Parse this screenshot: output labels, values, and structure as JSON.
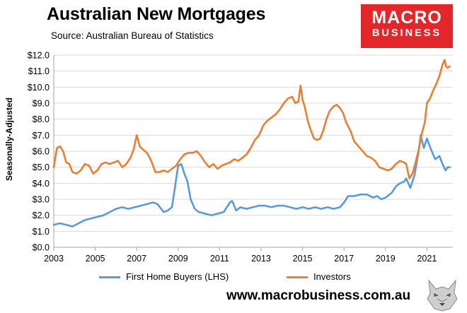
{
  "title": "Australian New Mortgages",
  "subtitle": "Source: Australian Bureau of Statistics",
  "logo": {
    "line1": "MACRO",
    "line2": "BUSINESS",
    "color": "#e3262a"
  },
  "website": "www.macrobusiness.com.au",
  "mascot_icon": "wolf-head-icon",
  "chart_data": {
    "type": "line",
    "title": "Australian New Mortgages",
    "ylabel": "Seasonally-Adjusted",
    "xlabel": "",
    "xlim": [
      2003.0,
      2022.25
    ],
    "ylim": [
      0,
      12
    ],
    "yticks": [
      "$0.0",
      "$1.0",
      "$2.0",
      "$3.0",
      "$4.0",
      "$5.0",
      "$6.0",
      "$7.0",
      "$8.0",
      "$9.0",
      "$10.0",
      "$11.0",
      "$12.0"
    ],
    "xticks": [
      "2003",
      "2005",
      "2007",
      "2009",
      "2011",
      "2013",
      "2015",
      "2017",
      "2019",
      "2021"
    ],
    "grid": true,
    "legend_position": "bottom",
    "series": [
      {
        "name": "First Home Buyers (LHS)",
        "color": "#5b9bd5",
        "x": [
          2003.0,
          2003.3,
          2003.6,
          2003.9,
          2004.2,
          2004.5,
          2004.8,
          2005.1,
          2005.4,
          2005.7,
          2006.0,
          2006.3,
          2006.6,
          2006.9,
          2007.2,
          2007.5,
          2007.8,
          2008.0,
          2008.3,
          2008.5,
          2008.7,
          2008.85,
          2009.0,
          2009.15,
          2009.3,
          2009.45,
          2009.6,
          2009.8,
          2010.0,
          2010.3,
          2010.6,
          2010.9,
          2011.2,
          2011.5,
          2011.6,
          2011.8,
          2012.0,
          2012.3,
          2012.6,
          2012.9,
          2013.2,
          2013.5,
          2013.8,
          2014.1,
          2014.4,
          2014.7,
          2015.0,
          2015.3,
          2015.6,
          2015.9,
          2016.2,
          2016.5,
          2016.8,
          2017.0,
          2017.2,
          2017.5,
          2017.8,
          2018.1,
          2018.4,
          2018.6,
          2018.8,
          2019.0,
          2019.3,
          2019.5,
          2019.7,
          2019.9,
          2020.0,
          2020.2,
          2020.4,
          2020.6,
          2020.7,
          2020.85,
          2021.0,
          2021.2,
          2021.4,
          2021.6,
          2021.75,
          2021.9,
          2022.0,
          2022.1
        ],
        "y": [
          1.4,
          1.5,
          1.4,
          1.3,
          1.5,
          1.7,
          1.8,
          1.9,
          2.0,
          2.2,
          2.4,
          2.5,
          2.4,
          2.5,
          2.6,
          2.7,
          2.8,
          2.7,
          2.2,
          2.3,
          2.5,
          3.8,
          5.1,
          5.2,
          4.6,
          4.1,
          3.0,
          2.4,
          2.2,
          2.1,
          2.0,
          2.1,
          2.2,
          2.8,
          2.9,
          2.3,
          2.5,
          2.4,
          2.5,
          2.6,
          2.6,
          2.5,
          2.6,
          2.6,
          2.5,
          2.4,
          2.5,
          2.4,
          2.5,
          2.4,
          2.5,
          2.4,
          2.5,
          2.8,
          3.2,
          3.2,
          3.3,
          3.3,
          3.1,
          3.2,
          3.0,
          3.1,
          3.4,
          3.8,
          4.0,
          4.1,
          4.3,
          3.7,
          4.5,
          6.0,
          7.0,
          6.2,
          6.8,
          6.1,
          5.5,
          5.7,
          5.2,
          4.8,
          5.0,
          5.0
        ]
      },
      {
        "name": "Investors",
        "color": "#ed7d31",
        "x": [
          2003.0,
          2003.15,
          2003.3,
          2003.45,
          2003.6,
          2003.75,
          2003.9,
          2004.1,
          2004.3,
          2004.5,
          2004.7,
          2004.9,
          2005.1,
          2005.3,
          2005.5,
          2005.7,
          2005.9,
          2006.1,
          2006.3,
          2006.5,
          2006.7,
          2006.85,
          2007.0,
          2007.15,
          2007.3,
          2007.5,
          2007.7,
          2007.9,
          2008.1,
          2008.3,
          2008.5,
          2008.7,
          2008.9,
          2009.1,
          2009.3,
          2009.5,
          2009.7,
          2009.9,
          2010.1,
          2010.3,
          2010.5,
          2010.7,
          2010.9,
          2011.1,
          2011.3,
          2011.5,
          2011.7,
          2011.9,
          2012.1,
          2012.3,
          2012.5,
          2012.7,
          2012.9,
          2013.1,
          2013.3,
          2013.5,
          2013.7,
          2013.9,
          2014.1,
          2014.3,
          2014.5,
          2014.65,
          2014.8,
          2014.9,
          2015.0,
          2015.1,
          2015.25,
          2015.4,
          2015.55,
          2015.7,
          2015.85,
          2016.0,
          2016.15,
          2016.3,
          2016.5,
          2016.65,
          2016.8,
          2016.95,
          2017.1,
          2017.3,
          2017.5,
          2017.7,
          2017.9,
          2018.1,
          2018.3,
          2018.5,
          2018.7,
          2018.9,
          2019.1,
          2019.3,
          2019.5,
          2019.7,
          2019.9,
          2020.0,
          2020.15,
          2020.3,
          2020.45,
          2020.6,
          2020.75,
          2020.9,
          2021.0,
          2021.15,
          2021.3,
          2021.45,
          2021.6,
          2021.75,
          2021.85,
          2021.92,
          2022.0,
          2022.1
        ],
        "y": [
          5.0,
          6.2,
          6.3,
          6.0,
          5.3,
          5.2,
          4.7,
          4.6,
          4.8,
          5.2,
          5.1,
          4.6,
          4.8,
          5.2,
          5.3,
          5.2,
          5.3,
          5.4,
          5.0,
          5.2,
          5.6,
          6.1,
          7.0,
          6.3,
          6.1,
          5.9,
          5.4,
          4.7,
          4.7,
          4.8,
          4.7,
          4.9,
          5.1,
          5.5,
          5.8,
          5.9,
          5.9,
          6.0,
          5.7,
          5.3,
          5.0,
          5.2,
          4.9,
          5.1,
          5.2,
          5.3,
          5.5,
          5.4,
          5.6,
          5.8,
          6.2,
          6.7,
          7.0,
          7.6,
          7.9,
          8.1,
          8.3,
          8.6,
          9.0,
          9.3,
          9.4,
          9.0,
          9.1,
          10.1,
          9.2,
          8.8,
          7.9,
          7.3,
          6.8,
          6.7,
          6.8,
          7.3,
          8.0,
          8.5,
          8.8,
          8.9,
          8.7,
          8.4,
          7.8,
          7.3,
          6.6,
          6.3,
          6.0,
          5.7,
          5.6,
          5.4,
          5.0,
          4.9,
          4.8,
          4.9,
          5.2,
          5.4,
          5.3,
          5.2,
          4.3,
          4.6,
          5.3,
          6.1,
          7.1,
          7.8,
          9.0,
          9.3,
          9.8,
          10.2,
          10.7,
          11.4,
          11.7,
          11.3,
          11.2,
          11.3
        ]
      }
    ]
  }
}
